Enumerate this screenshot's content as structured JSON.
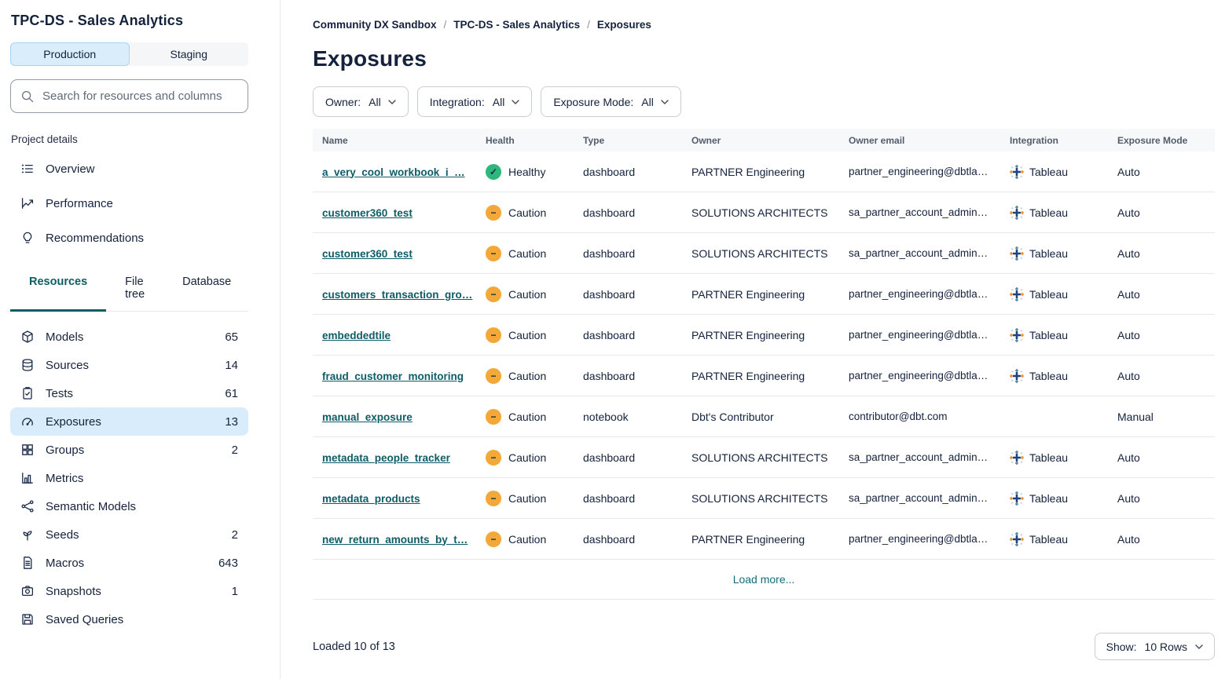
{
  "sidebar": {
    "project_title": "TPC-DS - Sales Analytics",
    "environments": {
      "production": "Production",
      "staging": "Staging"
    },
    "search_placeholder": "Search for resources and columns",
    "section_label": "Project details",
    "nav": [
      {
        "label": "Overview"
      },
      {
        "label": "Performance"
      },
      {
        "label": "Recommendations"
      }
    ],
    "tabs": [
      {
        "label": "Resources"
      },
      {
        "label": "File tree"
      },
      {
        "label": "Database"
      }
    ],
    "resources": [
      {
        "label": "Models",
        "count": "65"
      },
      {
        "label": "Sources",
        "count": "14"
      },
      {
        "label": "Tests",
        "count": "61"
      },
      {
        "label": "Exposures",
        "count": "13"
      },
      {
        "label": "Groups",
        "count": "2"
      },
      {
        "label": "Metrics",
        "count": ""
      },
      {
        "label": "Semantic Models",
        "count": ""
      },
      {
        "label": "Seeds",
        "count": "2"
      },
      {
        "label": "Macros",
        "count": "643"
      },
      {
        "label": "Snapshots",
        "count": "1"
      },
      {
        "label": "Saved Queries",
        "count": ""
      }
    ]
  },
  "main": {
    "breadcrumb": [
      "Community DX Sandbox",
      "TPC-DS - Sales Analytics",
      "Exposures"
    ],
    "page_title": "Exposures",
    "filters": [
      {
        "label": "Owner:",
        "value": "All"
      },
      {
        "label": "Integration:",
        "value": "All"
      },
      {
        "label": "Exposure Mode:",
        "value": "All"
      }
    ],
    "table": {
      "columns": [
        "Name",
        "Health",
        "Type",
        "Owner",
        "Owner email",
        "Integration",
        "Exposure Mode"
      ],
      "rows": [
        {
          "name": "a_very_cool_workbook_i_…",
          "health_status": "healthy",
          "health": "Healthy",
          "type": "dashboard",
          "owner": "PARTNER Engineering",
          "owner_email": "partner_engineering@dbtla…",
          "integration": "Tableau",
          "exposure_mode": "Auto"
        },
        {
          "name": "customer360_test",
          "health_status": "caution",
          "health": "Caution",
          "type": "dashboard",
          "owner": "SOLUTIONS ARCHITECTS",
          "owner_email": "sa_partner_account_admin…",
          "integration": "Tableau",
          "exposure_mode": "Auto"
        },
        {
          "name": "customer360_test",
          "health_status": "caution",
          "health": "Caution",
          "type": "dashboard",
          "owner": "SOLUTIONS ARCHITECTS",
          "owner_email": "sa_partner_account_admin…",
          "integration": "Tableau",
          "exposure_mode": "Auto"
        },
        {
          "name": "customers_transaction_gro…",
          "health_status": "caution",
          "health": "Caution",
          "type": "dashboard",
          "owner": "PARTNER Engineering",
          "owner_email": "partner_engineering@dbtla…",
          "integration": "Tableau",
          "exposure_mode": "Auto"
        },
        {
          "name": "embeddedtile",
          "health_status": "caution",
          "health": "Caution",
          "type": "dashboard",
          "owner": "PARTNER Engineering",
          "owner_email": "partner_engineering@dbtla…",
          "integration": "Tableau",
          "exposure_mode": "Auto"
        },
        {
          "name": "fraud_customer_monitoring",
          "health_status": "caution",
          "health": "Caution",
          "type": "dashboard",
          "owner": "PARTNER Engineering",
          "owner_email": "partner_engineering@dbtla…",
          "integration": "Tableau",
          "exposure_mode": "Auto"
        },
        {
          "name": "manual_exposure",
          "health_status": "caution",
          "health": "Caution",
          "type": "notebook",
          "owner": "Dbt's Contributor",
          "owner_email": "contributor@dbt.com",
          "integration": "",
          "exposure_mode": "Manual"
        },
        {
          "name": "metadata_people_tracker",
          "health_status": "caution",
          "health": "Caution",
          "type": "dashboard",
          "owner": "SOLUTIONS ARCHITECTS",
          "owner_email": "sa_partner_account_admin…",
          "integration": "Tableau",
          "exposure_mode": "Auto"
        },
        {
          "name": "metadata_products",
          "health_status": "caution",
          "health": "Caution",
          "type": "dashboard",
          "owner": "SOLUTIONS ARCHITECTS",
          "owner_email": "sa_partner_account_admin…",
          "integration": "Tableau",
          "exposure_mode": "Auto"
        },
        {
          "name": "new_return_amounts_by_t…",
          "health_status": "caution",
          "health": "Caution",
          "type": "dashboard",
          "owner": "PARTNER Engineering",
          "owner_email": "partner_engineering@dbtla…",
          "integration": "Tableau",
          "exposure_mode": "Auto"
        }
      ],
      "load_more_label": "Load more..."
    },
    "footer": {
      "loaded_text": "Loaded 10 of 13",
      "show_label": "Show:",
      "show_value": "10 Rows"
    }
  },
  "colors": {
    "accent_teal": "#0c5e63",
    "link_teal": "#0d5c66",
    "healthy_green": "#2fb67c",
    "caution_amber": "#f3a83a",
    "selected_blue": "#d9ecfb",
    "tableau_navy": "#1f447e",
    "tableau_orange": "#eb912c",
    "tableau_slate": "#59879b"
  }
}
